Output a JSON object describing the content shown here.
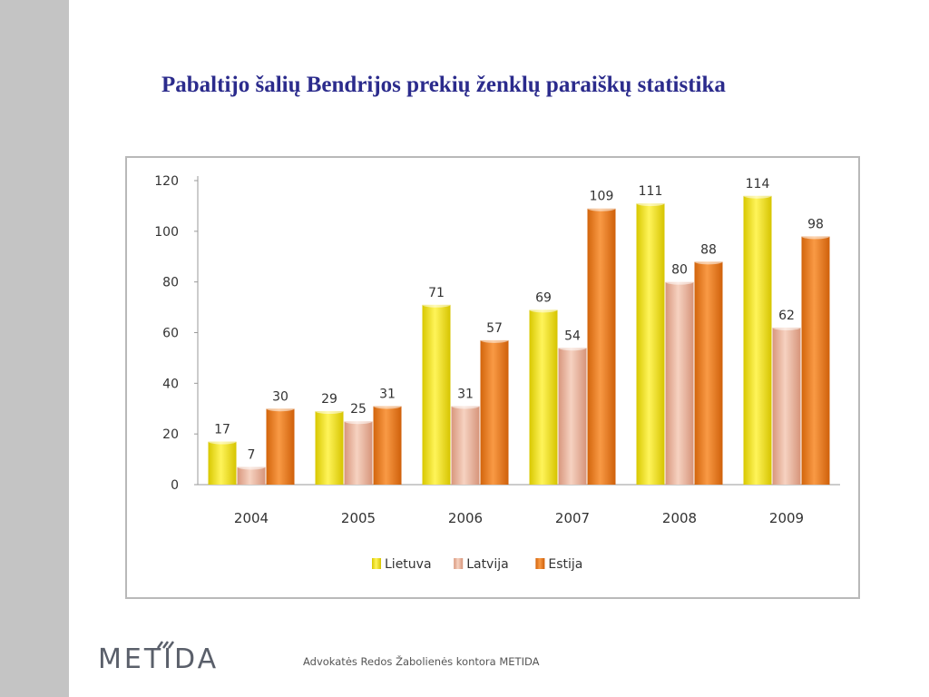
{
  "slide": {
    "title": "Pabaltijo šalių Bendrijos prekių ženklų paraiškų statistika",
    "footer_text": "Advokatės Redos Žabolienės kontora METIDA",
    "logo_text": "METIDA",
    "band_color": "#c4c4c4",
    "title_color": "#2b2b8c"
  },
  "chart_data": {
    "type": "bar",
    "title": "",
    "xlabel": "",
    "ylabel": "",
    "categories": [
      "2004",
      "2005",
      "2006",
      "2007",
      "2008",
      "2009"
    ],
    "series": [
      {
        "name": "Lietuva",
        "values": [
          17,
          29,
          71,
          69,
          111,
          114
        ],
        "color": "#f5e800"
      },
      {
        "name": "Latvija",
        "values": [
          7,
          25,
          31,
          54,
          80,
          62
        ],
        "color": "#e9b39c"
      },
      {
        "name": "Estija",
        "values": [
          30,
          31,
          57,
          109,
          88,
          98
        ],
        "color": "#ef7d1c"
      }
    ],
    "ylim": [
      0,
      120
    ],
    "yticks": [
      0,
      20,
      40,
      60,
      80,
      100,
      120
    ],
    "grid": false,
    "legend": "bottom",
    "data_labels": true
  }
}
